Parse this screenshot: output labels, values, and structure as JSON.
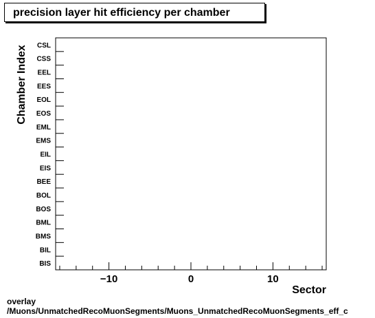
{
  "title": "precision layer hit efficiency per chamber",
  "footer": {
    "line1": "overlay",
    "line2": "/Muons/UnmatchedRecoMuonSegments/Muons_UnmatchedRecoMuonSegments_eff_c"
  },
  "chart_data": {
    "type": "heatmap",
    "title": "precision layer hit efficiency per chamber",
    "xlabel": "Sector",
    "ylabel": "Chamber Index",
    "xlim": [
      -16.5,
      16.5
    ],
    "x_major_ticks": [
      -10,
      0,
      10
    ],
    "x_tick_labels": [
      "−10",
      "0",
      "10"
    ],
    "categories_y": [
      "BIS",
      "BIL",
      "BMS",
      "BML",
      "BOS",
      "BOL",
      "BEE",
      "EIS",
      "EIL",
      "EMS",
      "EML",
      "EOS",
      "EOL",
      "EES",
      "EEL",
      "CSS",
      "CSL"
    ],
    "values": [],
    "grid": false,
    "legend": "none"
  }
}
